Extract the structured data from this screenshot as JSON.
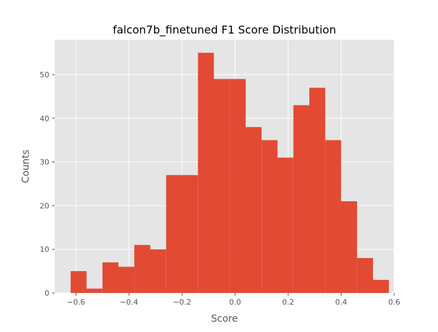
{
  "chart_data": {
    "type": "bar",
    "title": "falcon7b_finetuned F1 Score Distribution",
    "xlabel": "Score",
    "ylabel": "Counts",
    "xlim": [
      -0.68,
      0.6
    ],
    "ylim": [
      0,
      58
    ],
    "grid": true,
    "xticks": [
      -0.6,
      -0.4,
      -0.2,
      0.0,
      0.2,
      0.4,
      0.6
    ],
    "xtick_labels": [
      "−0.6",
      "−0.4",
      "−0.2",
      "0.0",
      "0.2",
      "0.4",
      "0.6"
    ],
    "yticks": [
      0,
      10,
      20,
      30,
      40,
      50
    ],
    "ytick_labels": [
      "0",
      "10",
      "20",
      "30",
      "40",
      "50"
    ],
    "bin_edges": [
      -0.62,
      -0.56,
      -0.5,
      -0.44,
      -0.38,
      -0.32,
      -0.26,
      -0.2,
      -0.14,
      -0.08,
      -0.02,
      0.04,
      0.1,
      0.16,
      0.22,
      0.28,
      0.34,
      0.4,
      0.46,
      0.52,
      0.58
    ],
    "counts": [
      5,
      1,
      7,
      6,
      11,
      10,
      27,
      27,
      55,
      49,
      49,
      38,
      35,
      31,
      43,
      47,
      35,
      21,
      8,
      3
    ],
    "colors": {
      "bar": "#E24A33",
      "plot_bg": "#E5E5E5",
      "grid": "#FFFFFF",
      "text": "#555555",
      "title": "#000000"
    }
  }
}
